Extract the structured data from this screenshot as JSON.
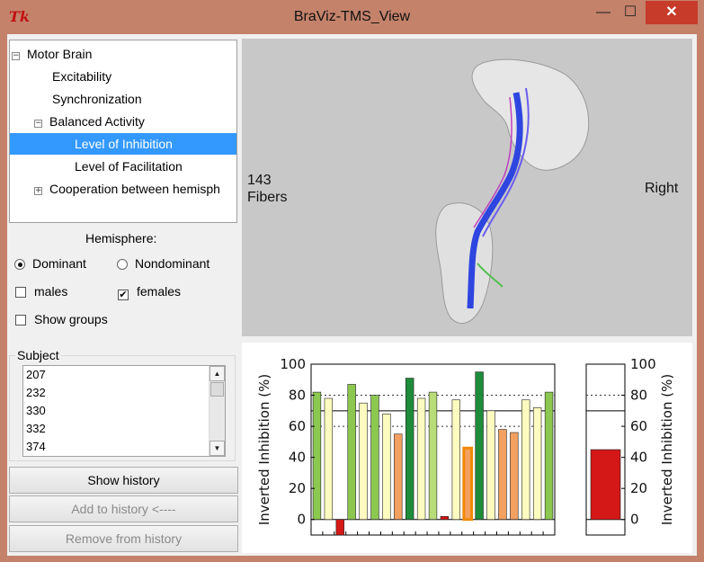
{
  "window": {
    "app_icon": "Tk",
    "title": "BraViz-TMS_View",
    "minimize": "—",
    "maximize": "☐",
    "close": "✕"
  },
  "tree": [
    {
      "label": "Motor Brain",
      "expander": "−",
      "level": 0
    },
    {
      "label": "Excitability",
      "expander": "",
      "level": 1
    },
    {
      "label": "Synchronization",
      "expander": "",
      "level": 1
    },
    {
      "label": "Balanced Activity",
      "expander": "−",
      "level": 1
    },
    {
      "label": "Level of Inhibition",
      "expander": "",
      "level": 2,
      "selected": true
    },
    {
      "label": "Level of Facilitation",
      "expander": "",
      "level": 2
    },
    {
      "label": "Cooperation between hemisph",
      "expander": "+",
      "level": 1
    }
  ],
  "hemisphere": {
    "label": "Hemisphere:",
    "dominant": "Dominant",
    "nondominant": "Nondominant",
    "selected": "dominant"
  },
  "filters": {
    "males": "males",
    "males_checked": false,
    "females": "females",
    "females_checked": true,
    "females_mark": "✔",
    "show_groups": "Show groups",
    "show_groups_checked": false
  },
  "subject": {
    "label": "Subject",
    "items": [
      "207",
      "232",
      "330",
      "332",
      "374"
    ],
    "scroll_up": "▲",
    "scroll_down": "▼"
  },
  "buttons": {
    "show_history": "Show history",
    "add_history": "Add to history <----",
    "remove_history": "Remove from history"
  },
  "viewport": {
    "fiber_count": "143",
    "fiber_label": "Fibers",
    "side_label": "Right"
  },
  "colors": {
    "selection": "#3399ff",
    "close_button": "#c73b2b",
    "dark_green": "#1e8c3a",
    "mid_green": "#8cc850",
    "light_green": "#b8dc78",
    "pale_yellow": "#fdfcc0",
    "orange": "#f4a060",
    "red": "#d41818"
  },
  "chart_data": [
    {
      "type": "bar",
      "ylabel": "Inverted Inhibition (%)",
      "ylim": [
        -10,
        100
      ],
      "yticks": [
        0,
        20,
        40,
        60,
        80,
        100
      ],
      "reference_line": 70,
      "dotted_gridlines": [
        60,
        80
      ],
      "values": [
        82,
        78,
        -10,
        87,
        75,
        80,
        68,
        55,
        91,
        78,
        82,
        2,
        77,
        46,
        95,
        70,
        58,
        56,
        77,
        72,
        82
      ],
      "bar_colors": [
        "#8cc850",
        "#fdfcc0",
        "#d41818",
        "#8cc850",
        "#fdfcc0",
        "#8cc850",
        "#fdfcc0",
        "#f4a060",
        "#1e8c3a",
        "#fdfcc0",
        "#b8dc78",
        "#d41818",
        "#fdfcc0",
        "#f4a060",
        "#1e8c3a",
        "#fdfcc0",
        "#f4a060",
        "#f4a060",
        "#fdfcc0",
        "#fdfcc0",
        "#8cc850"
      ],
      "highlighted_index": 13
    },
    {
      "type": "bar",
      "ylabel": "Inverted Inhibition (%)",
      "ylim": [
        -10,
        100
      ],
      "yticks": [
        0,
        20,
        40,
        60,
        80,
        100
      ],
      "reference_line": 70,
      "dotted_gridlines": [
        80
      ],
      "values": [
        45
      ],
      "bar_colors": [
        "#d41818"
      ]
    }
  ]
}
